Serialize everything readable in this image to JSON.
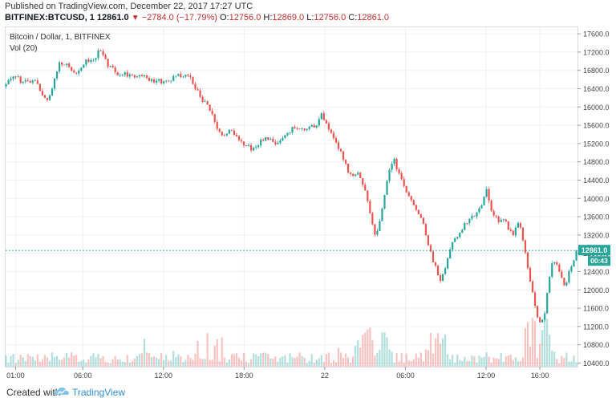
{
  "header": {
    "published": "Published on TradingView.com, December 22, 2017 17:27 UTC",
    "symbol": "BITFINEX:BTCUSD, 1",
    "last": "12861.0",
    "change": "−2784.0 (−17.79%)",
    "o_label": "O:",
    "o_value": "12756.0",
    "h_label": "H:",
    "h_value": "12869.0",
    "l_label": "L:",
    "l_value": "12756.0",
    "c_label": "C:",
    "c_value": "12861.0"
  },
  "chart_legend": {
    "title": "Bitcoin / Dollar, 1, BITFINEX",
    "volume_label": "Vol (20)"
  },
  "price_badge": {
    "value": "12861.0",
    "countdown": "00:43"
  },
  "footer": {
    "created": "Created with",
    "brand": "TradingView"
  },
  "colors": {
    "up": "#26a69a",
    "down": "#ef5350",
    "last_line": "#26a69a",
    "badge": "#26a69a",
    "grid": "#eef0f3",
    "axis_text": "#444444"
  },
  "chart_data": {
    "type": "candlestick",
    "title": "Bitcoin / Dollar, 1, BITFINEX",
    "ylim": [
      10320,
      17760
    ],
    "y_ticks": [
      "17600.0",
      "17200.0",
      "16800.0",
      "16400.0",
      "16000.0",
      "15600.0",
      "15200.0",
      "14800.0",
      "14400.0",
      "14000.0",
      "13600.0",
      "13200.0",
      "12800.0",
      "12400.0",
      "12000.0",
      "11600.0",
      "11200.0",
      "10800.0",
      "10400.0"
    ],
    "y_tick_values": [
      17600,
      17200,
      16800,
      16400,
      16000,
      15600,
      15200,
      14800,
      14400,
      14000,
      13600,
      13200,
      12800,
      12400,
      12000,
      11600,
      11200,
      10800,
      10400
    ],
    "x_ticks": [
      "01:00",
      "06:00",
      "12:00",
      "18:00",
      "22",
      "06:00",
      "12:00",
      "16:00"
    ],
    "x_tick_hours": [
      1,
      6,
      12,
      18,
      24,
      30,
      36,
      40
    ],
    "x_range_hours": [
      0.2,
      42.8
    ],
    "last_price": 12861.0,
    "price_path": [
      [
        0.2,
        16450
      ],
      [
        0.8,
        16700
      ],
      [
        1.5,
        16550
      ],
      [
        2.4,
        16600
      ],
      [
        3.0,
        16250
      ],
      [
        3.4,
        16100
      ],
      [
        3.8,
        16500
      ],
      [
        4.2,
        16950
      ],
      [
        4.8,
        16900
      ],
      [
        5.5,
        16750
      ],
      [
        6.2,
        17000
      ],
      [
        6.8,
        17050
      ],
      [
        7.3,
        17250
      ],
      [
        7.8,
        16950
      ],
      [
        8.5,
        16750
      ],
      [
        9.5,
        16700
      ],
      [
        10.5,
        16650
      ],
      [
        11.5,
        16550
      ],
      [
        12.5,
        16600
      ],
      [
        13.2,
        16700
      ],
      [
        14.0,
        16650
      ],
      [
        14.6,
        16300
      ],
      [
        15.2,
        16050
      ],
      [
        15.8,
        15700
      ],
      [
        16.4,
        15300
      ],
      [
        17.0,
        15550
      ],
      [
        17.6,
        15250
      ],
      [
        18.2,
        15150
      ],
      [
        18.8,
        15050
      ],
      [
        19.4,
        15300
      ],
      [
        20.0,
        15250
      ],
      [
        20.6,
        15200
      ],
      [
        21.2,
        15450
      ],
      [
        21.8,
        15550
      ],
      [
        22.4,
        15500
      ],
      [
        23.0,
        15550
      ],
      [
        23.4,
        15650
      ],
      [
        23.8,
        15850
      ],
      [
        24.3,
        15500
      ],
      [
        24.9,
        15200
      ],
      [
        25.4,
        14850
      ],
      [
        25.9,
        14500
      ],
      [
        26.4,
        14600
      ],
      [
        26.9,
        14300
      ],
      [
        27.4,
        13600
      ],
      [
        27.8,
        13150
      ],
      [
        28.2,
        13650
      ],
      [
        28.7,
        14450
      ],
      [
        29.1,
        14900
      ],
      [
        29.6,
        14450
      ],
      [
        30.2,
        14050
      ],
      [
        30.8,
        13800
      ],
      [
        31.3,
        13500
      ],
      [
        31.8,
        12900
      ],
      [
        32.2,
        12500
      ],
      [
        32.6,
        12250
      ],
      [
        33.1,
        12600
      ],
      [
        33.6,
        13150
      ],
      [
        34.1,
        13250
      ],
      [
        34.6,
        13500
      ],
      [
        35.1,
        13650
      ],
      [
        35.6,
        13800
      ],
      [
        36.0,
        14200
      ],
      [
        36.4,
        13750
      ],
      [
        36.9,
        13500
      ],
      [
        37.3,
        13550
      ],
      [
        37.7,
        13350
      ],
      [
        38.0,
        13150
      ],
      [
        38.3,
        13500
      ],
      [
        38.6,
        13400
      ],
      [
        38.9,
        12800
      ],
      [
        39.2,
        12350
      ],
      [
        39.5,
        11850
      ],
      [
        39.8,
        11450
      ],
      [
        40.1,
        11200
      ],
      [
        40.4,
        11550
      ],
      [
        40.7,
        12300
      ],
      [
        41.0,
        12650
      ],
      [
        41.3,
        12550
      ],
      [
        41.6,
        12250
      ],
      [
        41.9,
        12100
      ],
      [
        42.2,
        12450
      ],
      [
        42.5,
        12650
      ],
      [
        42.8,
        12861
      ]
    ]
  }
}
